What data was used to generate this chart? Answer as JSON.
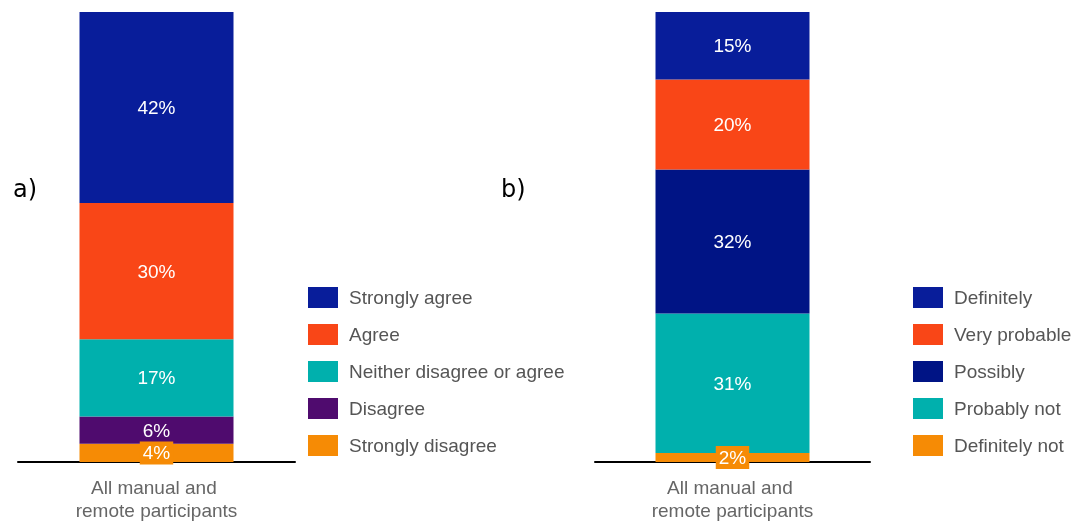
{
  "chart_data": [
    {
      "type": "bar",
      "title": "a)",
      "stacked": true,
      "legend": "right",
      "grid": false,
      "categories": [
        "All manual and remote participants"
      ],
      "series": [
        {
          "name": "Strongly disagree",
          "color": "#f68b05",
          "values": [
            4
          ],
          "value_labels": [
            "4%"
          ]
        },
        {
          "name": "Disagree",
          "color": "#4f0b6e",
          "values": [
            6
          ],
          "value_labels": [
            "6%"
          ]
        },
        {
          "name": "Neither disagree or agree",
          "color": "#00b0ad",
          "values": [
            17
          ],
          "value_labels": [
            "17%"
          ]
        },
        {
          "name": "Agree",
          "color": "#f94617",
          "values": [
            30
          ],
          "value_labels": [
            "30%"
          ]
        },
        {
          "name": "Strongly agree",
          "color": "#081d9a",
          "values": [
            42
          ],
          "value_labels": [
            "42%"
          ]
        }
      ]
    },
    {
      "type": "bar",
      "title": "b)",
      "stacked": true,
      "legend": "right",
      "grid": false,
      "categories": [
        "All manual and remote participants"
      ],
      "series": [
        {
          "name": "Definitely not",
          "color": "#f68b05",
          "values": [
            2
          ],
          "value_labels": [
            "2%"
          ]
        },
        {
          "name": "Probably not",
          "color": "#00b0ad",
          "values": [
            31
          ],
          "value_labels": [
            "31%"
          ]
        },
        {
          "name": "Possibly",
          "color": "#001485",
          "values": [
            32
          ],
          "value_labels": [
            "32%"
          ]
        },
        {
          "name": "Very probable",
          "color": "#f94617",
          "values": [
            20
          ],
          "value_labels": [
            "20%"
          ]
        },
        {
          "name": "Definitely",
          "color": "#081d9a",
          "values": [
            15
          ],
          "value_labels": [
            "15%"
          ]
        }
      ]
    }
  ]
}
